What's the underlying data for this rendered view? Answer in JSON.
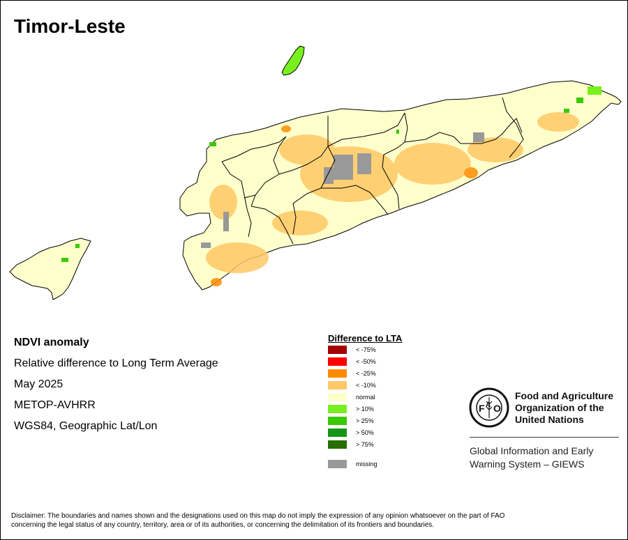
{
  "map": {
    "title": "Timor-Leste"
  },
  "info": {
    "line1": "NDVI anomaly",
    "line2": "Relative difference to Long Term Average",
    "line3": "May 2025",
    "line4": "METOP-AVHRR",
    "line5": "WGS84, Geographic Lat/Lon"
  },
  "legend": {
    "title": "Difference to LTA",
    "items": [
      {
        "label": "< -75%",
        "color": "#a50000"
      },
      {
        "label": "< -50%",
        "color": "#ff0000"
      },
      {
        "label": "< -25%",
        "color": "#ff8c00"
      },
      {
        "label": "< -10%",
        "color": "#ffc864"
      },
      {
        "label": "normal",
        "color": "#ffffcc"
      },
      {
        "label": "> 10%",
        "color": "#78f01e"
      },
      {
        "label": "> 25%",
        "color": "#3cc800"
      },
      {
        "label": "> 50%",
        "color": "#149614"
      },
      {
        "label": "> 75%",
        "color": "#286e00"
      },
      {
        "label": "missing",
        "color": "#999999"
      }
    ]
  },
  "organization": {
    "name_line1": "Food and Agriculture",
    "name_line2": "Organization of the",
    "name_line3": "United Nations",
    "logo_text": "FIAT PANIS",
    "system_line1": "Global Information and Early",
    "system_line2": "Warning System – GIEWS"
  },
  "disclaimer": {
    "line1": "Disclaimer: The boundaries and names shown and the designations used on this map do not imply the expression of any opinion whatsoever on the part of FAO",
    "line2": "concerning the legal status of any country, territory, area or of its authorities, or concerning the delimitation of its frontiers and boundaries."
  }
}
